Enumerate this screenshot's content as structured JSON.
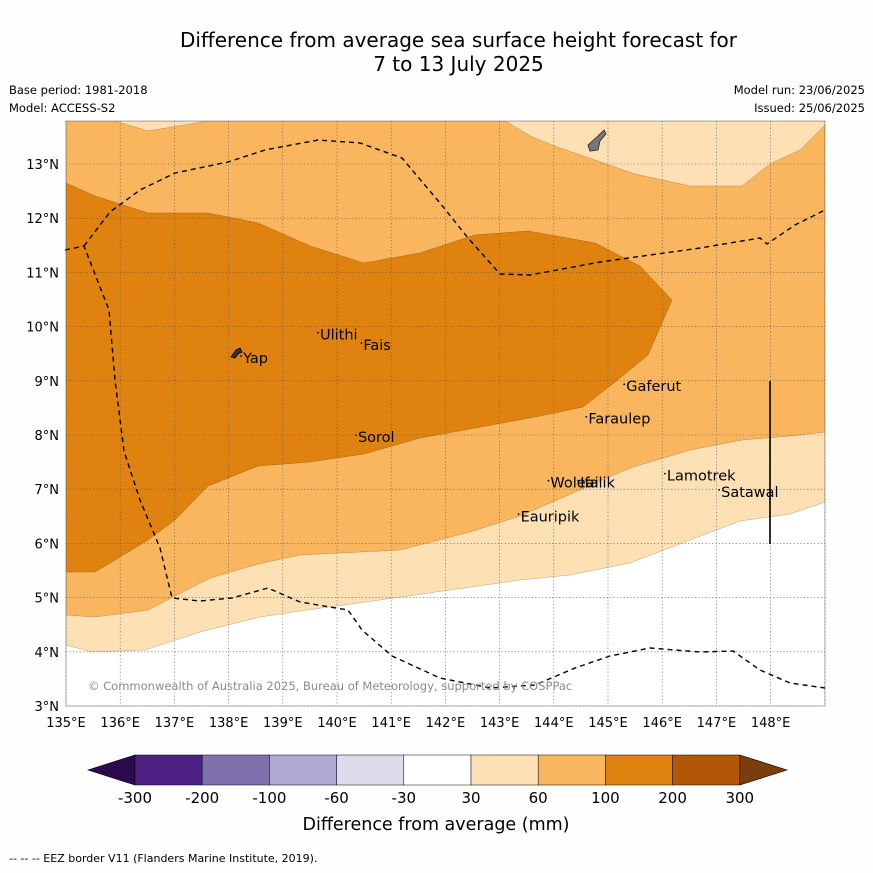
{
  "title_line1": "Difference from average sea surface height forecast for",
  "title_line2": "7 to 13 July 2025",
  "base_period": "Base period: 1981-2018",
  "model": "Model: ACCESS-S2",
  "model_run": "Model run: 23/06/2025",
  "issued": "Issued: 25/06/2025",
  "copyright": "© Commonwealth of Australia 2025, Bureau of Meteorology, supported by COSPPac",
  "footer": "--  --  -- EEZ border V11 (Flanders Marine Institute, 2019).",
  "axes": {
    "lon_ticks": [
      "135°E",
      "136°E",
      "137°E",
      "138°E",
      "139°E",
      "140°E",
      "141°E",
      "142°E",
      "143°E",
      "144°E",
      "145°E",
      "146°E",
      "147°E",
      "148°E"
    ],
    "lat_ticks": [
      "3°N",
      "4°N",
      "5°N",
      "6°N",
      "7°N",
      "8°N",
      "9°N",
      "10°N",
      "11°N",
      "12°N",
      "13°N"
    ]
  },
  "places": [
    {
      "name": "Yap",
      "lon": 138.23,
      "lat": 9.42
    },
    {
      "name": "Ulithi",
      "lon": 139.65,
      "lat": 9.85
    },
    {
      "name": "Fais",
      "lon": 140.45,
      "lat": 9.66
    },
    {
      "name": "Sorol",
      "lon": 140.35,
      "lat": 7.96
    },
    {
      "name": "Gaferut",
      "lon": 145.3,
      "lat": 8.9
    },
    {
      "name": "Faraulep",
      "lon": 144.6,
      "lat": 8.3
    },
    {
      "name": "Woleai",
      "lon": 143.9,
      "lat": 7.12
    },
    {
      "name": "Ifalik",
      "lon": 144.45,
      "lat": 7.12
    },
    {
      "name": "Lamotrek",
      "lon": 146.05,
      "lat": 7.25
    },
    {
      "name": "Satawal",
      "lon": 147.05,
      "lat": 6.95
    },
    {
      "name": "Eauripik",
      "lon": 143.35,
      "lat": 6.5
    }
  ],
  "colorbar": {
    "title": "Difference from average (mm)",
    "tick_labels": [
      "-300",
      "-200",
      "-100",
      "-60",
      "-30",
      "30",
      "60",
      "100",
      "200",
      "300"
    ],
    "colors": [
      "#4f2185",
      "#7f71ad",
      "#b0a8d1",
      "#dbdbec",
      "#ffffff",
      "#fee0b5",
      "#f9b65e",
      "#e0820f",
      "#b15707"
    ],
    "low_extend_color": "#2b0a4e",
    "high_extend_color": "#7a3d0b"
  },
  "legend_colors": {
    "30-60": "#fee0b5",
    "60-100": "#f9b65e",
    "100-200": "#e0820f"
  }
}
